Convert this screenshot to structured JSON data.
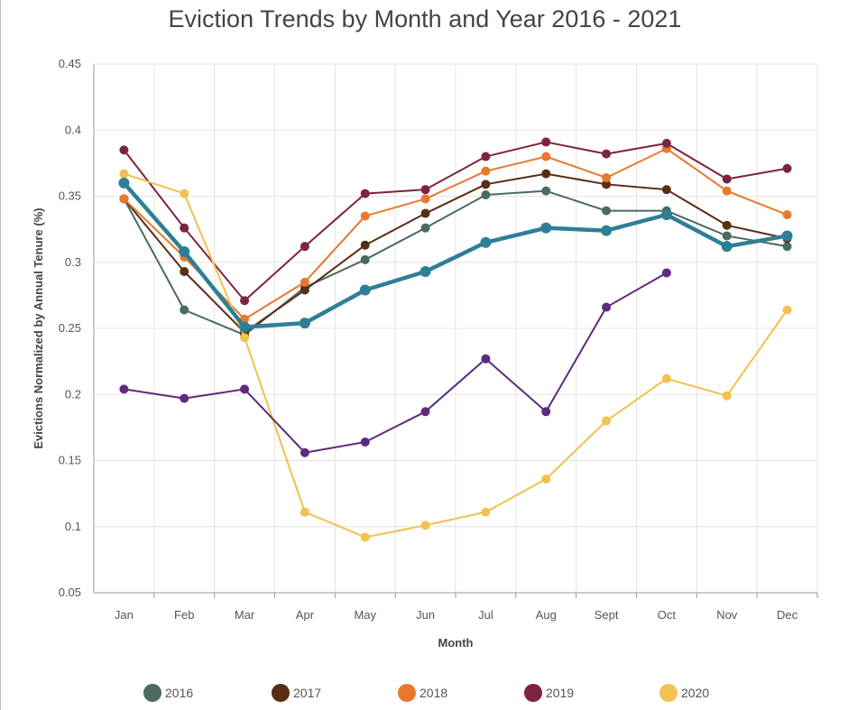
{
  "chart_data": {
    "type": "line",
    "title": "Eviction Trends by Month and Year 2016 - 2021",
    "xlabel": "Month",
    "ylabel": "Evictions Normalized by Annual Tenure (%)",
    "categories": [
      "Jan",
      "Feb",
      "Mar",
      "Apr",
      "May",
      "Jun",
      "Jul",
      "Aug",
      "Sept",
      "Oct",
      "Nov",
      "Dec"
    ],
    "ylim": [
      0.05,
      0.45
    ],
    "yticks": [
      "0.05",
      "0.1",
      "0.15",
      "0.2",
      "0.25",
      "0.3",
      "0.35",
      "0.4",
      "0.45"
    ],
    "grid": true,
    "legend_position": "bottom",
    "series": [
      {
        "name": "2016",
        "color": "#4a6b5e",
        "values": [
          0.348,
          0.264,
          0.245,
          0.281,
          0.302,
          0.326,
          0.351,
          0.354,
          0.339,
          0.339,
          0.32,
          0.312
        ]
      },
      {
        "name": "2017",
        "color": "#5a2e14",
        "values": [
          0.348,
          0.293,
          0.247,
          0.279,
          0.313,
          0.337,
          0.359,
          0.367,
          0.359,
          0.355,
          0.328,
          0.318
        ]
      },
      {
        "name": "2018",
        "color": "#e8782e",
        "values": [
          0.348,
          0.304,
          0.257,
          0.285,
          0.335,
          0.348,
          0.369,
          0.38,
          0.364,
          0.386,
          0.354,
          0.336
        ]
      },
      {
        "name": "2019",
        "color": "#7d2342",
        "values": [
          0.385,
          0.326,
          0.271,
          0.312,
          0.352,
          0.355,
          0.38,
          0.391,
          0.382,
          0.39,
          0.363,
          0.371
        ]
      },
      {
        "name": "2020",
        "color": "#f2c14e",
        "values": [
          0.367,
          0.352,
          0.243,
          0.111,
          0.092,
          0.101,
          0.111,
          0.136,
          0.18,
          0.212,
          0.199,
          0.264
        ]
      },
      {
        "color": "#5e2a7e",
        "values": [
          0.204,
          0.197,
          0.204,
          0.156,
          0.164,
          0.187,
          0.227,
          0.187,
          0.266,
          0.292,
          null,
          null
        ]
      },
      {
        "color": "#2e7f96",
        "thick": true,
        "values": [
          0.36,
          0.308,
          0.251,
          0.254,
          0.279,
          0.293,
          0.315,
          0.326,
          0.324,
          0.336,
          0.312,
          0.32
        ]
      }
    ]
  }
}
